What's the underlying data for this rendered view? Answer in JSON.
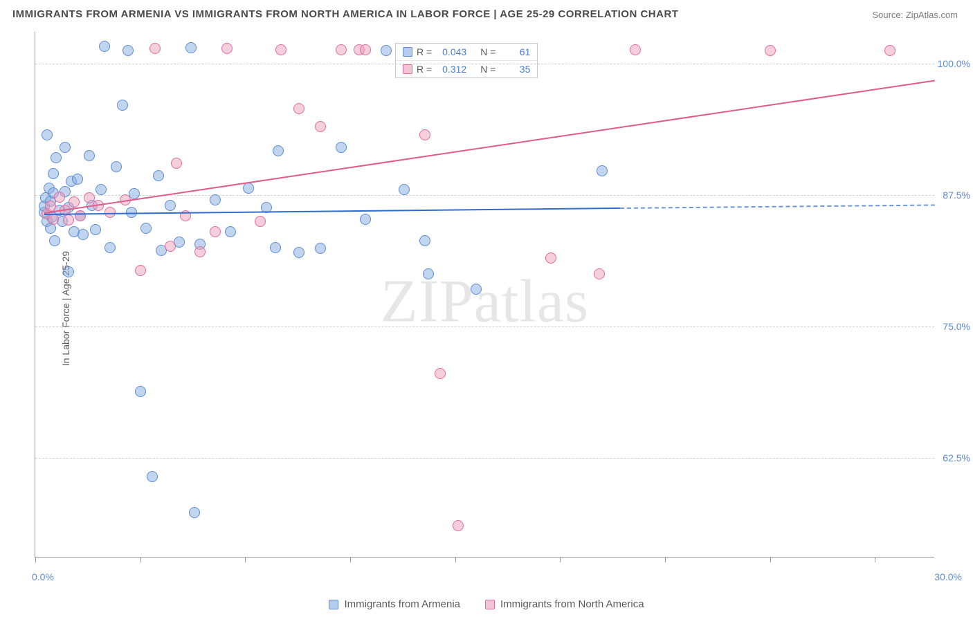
{
  "title": "IMMIGRANTS FROM ARMENIA VS IMMIGRANTS FROM NORTH AMERICA IN LABOR FORCE | AGE 25-29 CORRELATION CHART",
  "source": "Source: ZipAtlas.com",
  "watermark": "ZIPatlas",
  "chart": {
    "type": "scatter",
    "xlim": [
      0,
      30
    ],
    "ylim": [
      53,
      103
    ],
    "xtick_positions": [
      0,
      3.5,
      7,
      10.5,
      14,
      17.5,
      21,
      24.5,
      28
    ],
    "xtick_labels_min": "0.0%",
    "xtick_labels_max": "30.0%",
    "ytick_positions": [
      62.5,
      75.0,
      87.5,
      100.0
    ],
    "ytick_labels": [
      "62.5%",
      "75.0%",
      "87.5%",
      "100.0%"
    ],
    "ylabel": "In Labor Force | Age 25-29",
    "grid_color": "#cfcfcf",
    "background_color": "#ffffff",
    "axis_color": "#9a9a9a",
    "text_color": "#5a5a5a",
    "tick_label_color": "#5a8bd6",
    "marker_radius": 8,
    "series": [
      {
        "name": "Immigrants from Armenia",
        "color_fill": "rgba(134,172,222,0.5)",
        "color_stroke": "#5a8bd6",
        "R": "0.043",
        "N": "61",
        "regression": {
          "x1": 0.3,
          "y1": 85.7,
          "x2": 19.5,
          "y2": 86.3,
          "color": "#2f6bd0",
          "extrap": {
            "x1": 19.5,
            "y1": 86.3,
            "x2": 30.0,
            "y2": 86.6
          }
        },
        "points": [
          [
            0.3,
            85.8
          ],
          [
            0.3,
            86.4
          ],
          [
            0.35,
            87.2
          ],
          [
            0.4,
            85.0
          ],
          [
            0.4,
            93.2
          ],
          [
            0.45,
            88.1
          ],
          [
            0.5,
            84.3
          ],
          [
            0.5,
            86.9
          ],
          [
            0.55,
            85.4
          ],
          [
            0.6,
            87.7
          ],
          [
            0.6,
            89.5
          ],
          [
            0.65,
            83.1
          ],
          [
            0.7,
            91.0
          ],
          [
            0.8,
            86.0
          ],
          [
            0.9,
            85.0
          ],
          [
            1.0,
            92.0
          ],
          [
            1.0,
            87.8
          ],
          [
            1.1,
            80.2
          ],
          [
            1.1,
            86.3
          ],
          [
            1.2,
            88.8
          ],
          [
            1.3,
            84.0
          ],
          [
            1.4,
            89.0
          ],
          [
            1.5,
            85.5
          ],
          [
            1.6,
            83.7
          ],
          [
            1.8,
            91.2
          ],
          [
            1.9,
            86.5
          ],
          [
            2.0,
            84.2
          ],
          [
            2.2,
            88.0
          ],
          [
            2.3,
            101.6
          ],
          [
            2.5,
            82.5
          ],
          [
            2.7,
            90.2
          ],
          [
            2.9,
            96.0
          ],
          [
            3.1,
            101.2
          ],
          [
            3.2,
            85.8
          ],
          [
            3.3,
            87.6
          ],
          [
            3.5,
            68.8
          ],
          [
            3.7,
            84.3
          ],
          [
            3.9,
            60.7
          ],
          [
            4.1,
            89.3
          ],
          [
            4.2,
            82.2
          ],
          [
            4.5,
            86.5
          ],
          [
            4.8,
            83.0
          ],
          [
            5.2,
            101.5
          ],
          [
            5.3,
            57.3
          ],
          [
            5.5,
            82.8
          ],
          [
            6.0,
            87.0
          ],
          [
            6.5,
            84.0
          ],
          [
            7.1,
            88.1
          ],
          [
            7.7,
            86.3
          ],
          [
            8.0,
            82.5
          ],
          [
            8.1,
            91.7
          ],
          [
            8.8,
            82.0
          ],
          [
            9.5,
            82.4
          ],
          [
            10.2,
            92.0
          ],
          [
            11.0,
            85.2
          ],
          [
            11.7,
            101.2
          ],
          [
            12.3,
            88.0
          ],
          [
            13.0,
            83.1
          ],
          [
            13.1,
            80.0
          ],
          [
            14.7,
            78.5
          ],
          [
            18.9,
            89.8
          ]
        ]
      },
      {
        "name": "Immigrants from North America",
        "color_fill": "rgba(235,160,185,0.5)",
        "color_stroke": "#e06b9b",
        "R": "0.312",
        "N": "35",
        "regression": {
          "x1": 0.3,
          "y1": 85.8,
          "x2": 30.0,
          "y2": 98.4,
          "color": "#e05a8a"
        },
        "points": [
          [
            0.4,
            85.7
          ],
          [
            0.5,
            86.4
          ],
          [
            0.6,
            85.2
          ],
          [
            0.8,
            87.3
          ],
          [
            1.0,
            86.0
          ],
          [
            1.1,
            85.1
          ],
          [
            1.3,
            86.8
          ],
          [
            1.5,
            85.5
          ],
          [
            1.8,
            87.2
          ],
          [
            2.1,
            86.5
          ],
          [
            2.5,
            85.8
          ],
          [
            3.0,
            87.0
          ],
          [
            3.5,
            80.3
          ],
          [
            4.0,
            101.4
          ],
          [
            4.5,
            82.6
          ],
          [
            4.7,
            90.5
          ],
          [
            5.0,
            85.5
          ],
          [
            5.5,
            82.1
          ],
          [
            6.0,
            84.0
          ],
          [
            6.4,
            101.4
          ],
          [
            7.5,
            85.0
          ],
          [
            8.2,
            101.3
          ],
          [
            8.8,
            95.7
          ],
          [
            9.5,
            94.0
          ],
          [
            10.2,
            101.3
          ],
          [
            10.8,
            101.3
          ],
          [
            11.0,
            101.3
          ],
          [
            13.0,
            93.2
          ],
          [
            14.1,
            56.0
          ],
          [
            13.5,
            70.5
          ],
          [
            17.2,
            81.5
          ],
          [
            18.8,
            80.0
          ],
          [
            20.0,
            101.3
          ],
          [
            24.5,
            101.2
          ],
          [
            28.5,
            101.2
          ]
        ]
      }
    ],
    "legend_stats": {
      "labels": {
        "r": "R =",
        "n": "N ="
      }
    },
    "bottom_legend_items": [
      "Immigrants from Armenia",
      "Immigrants from North America"
    ]
  }
}
